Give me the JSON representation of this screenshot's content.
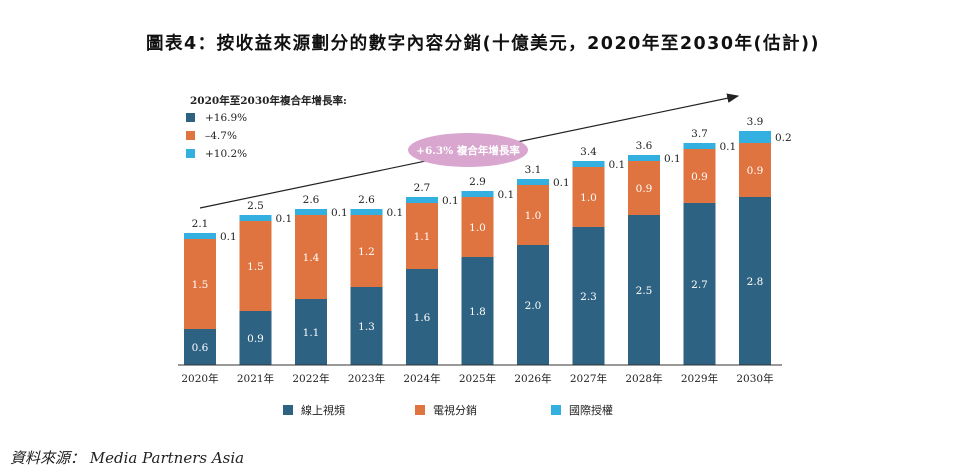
{
  "header": {
    "title": "圖表4：按收益來源劃分的數字內容分銷(十億美元，2020年至2030年(估計))"
  },
  "footer": {
    "source": "資料來源： Media Partners Asia"
  },
  "colors": {
    "online_video": "#2e6282",
    "tv_distribution": "#e07440",
    "intl_licensing": "#33afe0",
    "cagr_bubble": "#d8a6cf",
    "arrow": "#222222"
  },
  "chart_data": {
    "type": "bar",
    "stacked": true,
    "categories": [
      "2020年",
      "2021年",
      "2022年",
      "2023年",
      "2024年",
      "2025年",
      "2026年",
      "2027年",
      "2028年",
      "2029年",
      "2030年"
    ],
    "series": [
      {
        "name": "線上視頻",
        "values": [
          0.6,
          0.9,
          1.1,
          1.3,
          1.6,
          1.8,
          2.0,
          2.3,
          2.5,
          2.7,
          2.8
        ]
      },
      {
        "name": "電視分銷",
        "values": [
          1.5,
          1.5,
          1.4,
          1.2,
          1.1,
          1.0,
          1.0,
          1.0,
          0.9,
          0.9,
          0.9
        ]
      },
      {
        "name": "國際授權",
        "values": [
          0.1,
          0.1,
          0.1,
          0.1,
          0.1,
          0.1,
          0.1,
          0.1,
          0.1,
          0.1,
          0.2
        ]
      }
    ],
    "totals": [
      2.1,
      2.5,
      2.6,
      2.6,
      2.7,
      2.9,
      3.1,
      3.4,
      3.6,
      3.7,
      3.9
    ],
    "cagr_legend": {
      "title": "2020年至2030年複合年增長率:",
      "items": [
        "+16.9%",
        "–4.7%",
        "+10.2%"
      ]
    },
    "overall_cagr_label": "+6.3% 複合年增長率",
    "legend_position": "bottom",
    "ylim": [
      0,
      4.6
    ],
    "grid": false
  }
}
